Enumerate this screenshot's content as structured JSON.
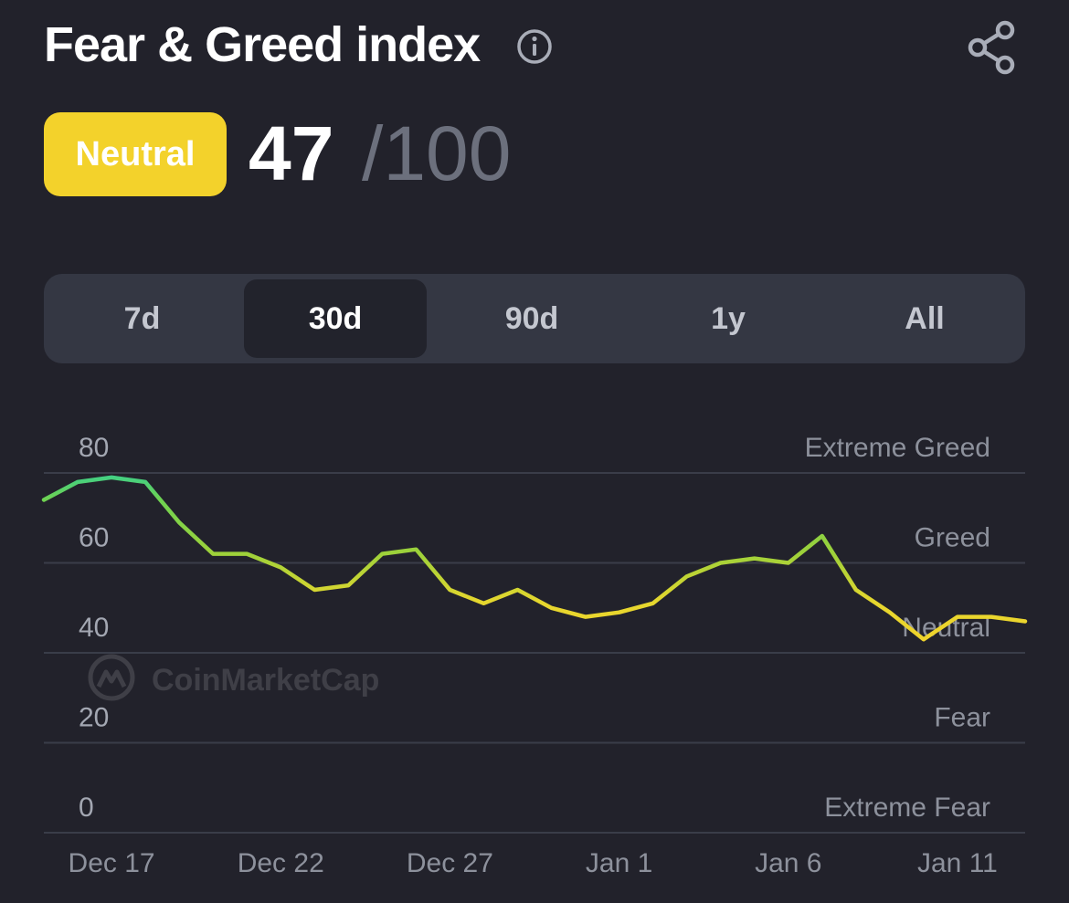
{
  "header": {
    "title": "Fear & Greed index",
    "info_icon": "info-circle-icon",
    "share_icon": "share-icon"
  },
  "summary": {
    "status": "Neutral",
    "value": "47",
    "max": "/100",
    "status_color": "#f3d22b"
  },
  "tabs": [
    {
      "label": "7d",
      "active": false
    },
    {
      "label": "30d",
      "active": true
    },
    {
      "label": "90d",
      "active": false
    },
    {
      "label": "1y",
      "active": false
    },
    {
      "label": "All",
      "active": false
    }
  ],
  "watermark": "CoinMarketCap",
  "chart_data": {
    "type": "line",
    "x": [
      "Dec 15",
      "Dec 16",
      "Dec 17",
      "Dec 18",
      "Dec 19",
      "Dec 20",
      "Dec 21",
      "Dec 22",
      "Dec 23",
      "Dec 24",
      "Dec 25",
      "Dec 26",
      "Dec 27",
      "Dec 28",
      "Dec 29",
      "Dec 30",
      "Dec 31",
      "Jan 1",
      "Jan 2",
      "Jan 3",
      "Jan 4",
      "Jan 5",
      "Jan 6",
      "Jan 7",
      "Jan 8",
      "Jan 9",
      "Jan 10",
      "Jan 11",
      "Jan 12",
      "Jan 13"
    ],
    "series": [
      {
        "values": [
          74,
          78,
          79,
          78,
          69,
          62,
          62,
          59,
          54,
          55,
          62,
          63,
          54,
          51,
          54,
          50,
          48,
          49,
          51,
          57,
          60,
          61,
          60,
          66,
          54,
          49,
          43,
          48,
          48,
          47
        ]
      }
    ],
    "x_tick_labels": [
      "Dec 17",
      "Dec 22",
      "Dec 27",
      "Jan 1",
      "Jan 6",
      "Jan 11"
    ],
    "y_ticks": [
      80,
      60,
      40,
      20,
      0
    ],
    "ylim": [
      0,
      80
    ],
    "zone_labels": [
      {
        "label": "Extreme Greed",
        "at": 80
      },
      {
        "label": "Greed",
        "at": 60
      },
      {
        "label": "Neutral",
        "at": 40
      },
      {
        "label": "Fear",
        "at": 20
      },
      {
        "label": "Extreme Fear",
        "at": 0
      }
    ],
    "grid": true,
    "colors": {
      "neutral": "#f3d22b",
      "greed": "#9ed13a",
      "extreme_greed": "#3ccf8a"
    }
  }
}
